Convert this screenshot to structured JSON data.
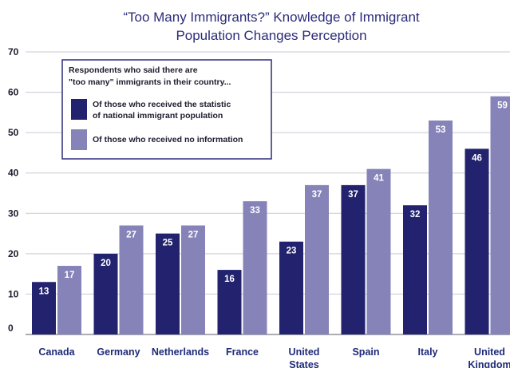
{
  "chart_data": {
    "type": "bar",
    "title_lines": [
      "“Too Many Immigrants?” Knowledge of Immigrant",
      "Population Changes Perception"
    ],
    "categories": [
      [
        "Canada"
      ],
      [
        "Germany"
      ],
      [
        "Netherlands"
      ],
      [
        "France"
      ],
      [
        "United",
        "States"
      ],
      [
        "Spain"
      ],
      [
        "Italy"
      ],
      [
        "United",
        "Kingdom"
      ]
    ],
    "series": [
      {
        "name": "Of those who received the statistic of national immigrant population",
        "name_lines": [
          "Of those who received the statistic",
          "of national immigrant population"
        ],
        "color": "#22226e",
        "values": [
          13,
          20,
          25,
          16,
          23,
          37,
          32,
          46
        ]
      },
      {
        "name": "Of those who received no information",
        "name_lines": [
          "Of those who received no information"
        ],
        "color": "#8683b8",
        "values": [
          17,
          27,
          27,
          33,
          37,
          41,
          53,
          59
        ]
      }
    ],
    "legend_heading_lines": [
      "Respondents who said there are",
      "\"too many\" immigrants in their country..."
    ],
    "legend_placement": "top-left",
    "yticks": [
      0,
      10,
      20,
      30,
      40,
      50,
      60,
      70
    ],
    "ylim": [
      0,
      70
    ],
    "grid": true
  }
}
